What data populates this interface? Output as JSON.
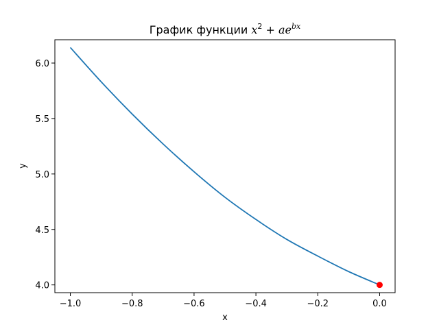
{
  "chart_data": {
    "type": "line",
    "title": {
      "prefix": "График функции ",
      "base": "x",
      "exp1": "2",
      "op": " + ae",
      "exp2": "bx"
    },
    "xlabel": "x",
    "ylabel": "y",
    "xlim": [
      -1.05,
      0.05
    ],
    "ylim": [
      3.93,
      6.21
    ],
    "xticks": [
      -1.0,
      -0.8,
      -0.6,
      -0.4,
      -0.2,
      0.0
    ],
    "xtick_labels": [
      "−1.0",
      "−0.8",
      "−0.6",
      "−0.4",
      "−0.2",
      "0.0"
    ],
    "yticks": [
      4.0,
      4.5,
      5.0,
      5.5,
      6.0
    ],
    "ytick_labels": [
      "4.0",
      "4.5",
      "5.0",
      "5.5",
      "6.0"
    ],
    "grid": false,
    "series": [
      {
        "color": "#1f77b4",
        "x": [
          -1.0,
          -0.9,
          -0.8,
          -0.7,
          -0.6,
          -0.5,
          -0.4,
          -0.3,
          -0.2,
          -0.1,
          0.0
        ],
        "y": [
          6.14,
          5.83,
          5.54,
          5.27,
          5.02,
          4.79,
          4.59,
          4.41,
          4.26,
          4.12,
          4.0
        ]
      }
    ],
    "points": [
      {
        "x": 0.0,
        "y": 4.0,
        "color": "#ff0000"
      }
    ]
  }
}
